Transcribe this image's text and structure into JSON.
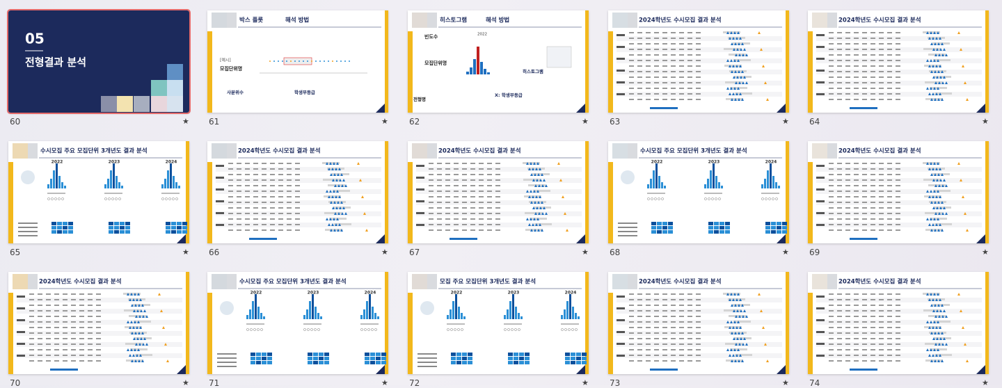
{
  "slides": [
    {
      "number": "60",
      "kind": "title",
      "selected": true,
      "label": "05",
      "title": "전형결과 분석"
    },
    {
      "number": "61",
      "kind": "box",
      "title": "박스 플롯",
      "title_suffix": "해석 방법",
      "texts": [
        "[예시]",
        "모집단위명",
        "사분위수",
        "학생부등급"
      ]
    },
    {
      "number": "62",
      "kind": "hist",
      "title": "히스토그램",
      "title_suffix": "해석 방법",
      "texts": [
        "빈도수",
        "2022",
        "모집단위명",
        "히스토그램",
        "전형명",
        "X: 학생부등급"
      ]
    },
    {
      "number": "63",
      "kind": "table",
      "title": "2024학년도 수시모집 결과 분석"
    },
    {
      "number": "64",
      "kind": "table",
      "title": "2024학년도 수시모집 결과 분석"
    },
    {
      "number": "65",
      "kind": "multi",
      "title": "수시모집 주요 모집단위 3개년도 결과 분석",
      "years": [
        "2022",
        "2023",
        "2024"
      ]
    },
    {
      "number": "66",
      "kind": "table",
      "title": "2024학년도 수시모집 결과 분석"
    },
    {
      "number": "67",
      "kind": "table",
      "title": "2024학년도 수시모집 결과 분석"
    },
    {
      "number": "68",
      "kind": "multi",
      "title": "수시모집 주요 모집단위 3개년도 결과 분석",
      "years": [
        "2022",
        "2023",
        "2024"
      ]
    },
    {
      "number": "69",
      "kind": "table",
      "title": "2024학년도 수시모집 결과 분석"
    },
    {
      "number": "70",
      "kind": "table",
      "title": "2024학년도 수시모집 결과 분석"
    },
    {
      "number": "71",
      "kind": "multi",
      "title": "수시모집 주요 모집단위 3개년도 결과 분석",
      "years": [
        "2022",
        "2023",
        "2024"
      ]
    },
    {
      "number": "72",
      "kind": "multi",
      "title": "모집 주요 모집단위 3개년도 결과 분석",
      "years": [
        "2022",
        "2023",
        "2024"
      ]
    },
    {
      "number": "73",
      "kind": "table",
      "title": "2024학년도 수시모집 결과 분석"
    },
    {
      "number": "74",
      "kind": "table",
      "title": "2024학년도 수시모집 결과 분석"
    }
  ],
  "star": "★"
}
